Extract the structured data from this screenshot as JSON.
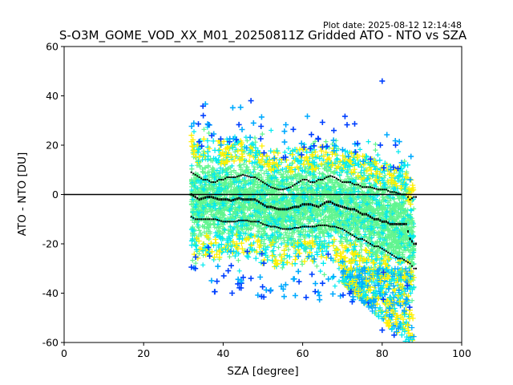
{
  "plot_date": "Plot date: 2025-08-12 12:14:48",
  "chart_data": {
    "type": "scatter",
    "title": "S-O3M_GOME_VOD_XX_M01_20250811Z Gridded ATO - NTO vs SZA",
    "xlabel": "SZA [degree]",
    "ylabel": "ATO - NTO [DU]",
    "xlim": [
      0,
      100
    ],
    "ylim": [
      -60,
      60
    ],
    "xticks": [
      0,
      20,
      40,
      60,
      80,
      100
    ],
    "yticks": [
      -60,
      -40,
      -20,
      0,
      20,
      40,
      60
    ],
    "grid": false,
    "legend": "none",
    "reference_line_y": 0,
    "marker": "plus",
    "colors": {
      "dense": "#60f590",
      "medium": "#00eaf0",
      "low": "#fff000",
      "sparse": "#00aaff",
      "rare": "#0040ff",
      "stat": "#000000"
    },
    "series": [
      {
        "x": [
          32,
          33,
          34,
          35,
          36,
          37,
          38,
          39,
          40,
          41,
          42,
          43,
          44,
          45,
          46,
          47,
          48,
          49,
          50,
          51,
          52,
          53,
          54,
          55,
          56,
          57,
          58,
          59,
          60,
          61,
          62,
          63,
          64,
          65,
          66,
          67,
          68,
          69,
          70,
          71,
          72,
          73,
          74,
          75,
          76,
          77,
          78,
          79,
          80,
          81,
          82,
          83,
          84,
          85,
          86,
          87,
          88
        ],
        "y": [
          0,
          -1,
          -2,
          -1.5,
          -1,
          -1,
          -1.5,
          -2,
          -2,
          -2,
          -2.5,
          -2,
          -1.5,
          -2,
          -2,
          -2,
          -2,
          -3,
          -4,
          -5,
          -5,
          -5.5,
          -6,
          -6,
          -6,
          -5.5,
          -5,
          -5,
          -4,
          -4,
          -4,
          -4.5,
          -5,
          -4,
          -3,
          -3,
          -4,
          -4.5,
          -5,
          -5.5,
          -6,
          -6,
          -7,
          -8,
          -8,
          -9,
          -10,
          -10,
          -11,
          -11,
          -12,
          -12,
          -12,
          -12,
          -12,
          -18,
          -20
        ]
      },
      {
        "x": [
          32,
          33,
          34,
          35,
          36,
          37,
          38,
          39,
          40,
          41,
          42,
          43,
          44,
          45,
          46,
          47,
          48,
          49,
          50,
          51,
          52,
          53,
          54,
          55,
          56,
          57,
          58,
          59,
          60,
          61,
          62,
          63,
          64,
          65,
          66,
          67,
          68,
          69,
          70,
          71,
          72,
          73,
          74,
          75,
          76,
          77,
          78,
          79,
          80,
          81,
          82,
          83,
          84,
          85,
          86,
          87,
          88
        ],
        "y": [
          9,
          8,
          7,
          6,
          6,
          5,
          5,
          6,
          6,
          7,
          7,
          7,
          7.5,
          8,
          7.5,
          7,
          7,
          6,
          5,
          4,
          3,
          2.5,
          2,
          2,
          2.5,
          3,
          4,
          5,
          6,
          6,
          5,
          5,
          6,
          6,
          7,
          7.5,
          7,
          6,
          5,
          5,
          5,
          4,
          4,
          3,
          3,
          3,
          2.5,
          2,
          2,
          2,
          1,
          1,
          0.5,
          0,
          0,
          -2,
          -1
        ]
      },
      {
        "x": [
          32,
          33,
          34,
          35,
          36,
          37,
          38,
          39,
          40,
          41,
          42,
          43,
          44,
          45,
          46,
          47,
          48,
          49,
          50,
          51,
          52,
          53,
          54,
          55,
          56,
          57,
          58,
          59,
          60,
          61,
          62,
          63,
          64,
          65,
          66,
          67,
          68,
          69,
          70,
          71,
          72,
          73,
          74,
          75,
          76,
          77,
          78,
          79,
          80,
          81,
          82,
          83,
          84,
          85,
          86,
          87,
          88
        ],
        "y": [
          -9,
          -10,
          -10,
          -10,
          -10,
          -10,
          -10,
          -10.5,
          -11,
          -11,
          -11,
          -11,
          -10.5,
          -10.5,
          -10.5,
          -11,
          -11,
          -11,
          -12,
          -12.5,
          -13,
          -13,
          -13.5,
          -14,
          -14,
          -14,
          -13.5,
          -13.5,
          -13,
          -13,
          -13,
          -13,
          -12.5,
          -12.5,
          -12.5,
          -13,
          -13,
          -13.5,
          -14,
          -15,
          -16,
          -17,
          -18,
          -18,
          -19,
          -20,
          -21,
          -21,
          -22,
          -23,
          -24,
          -25,
          -26,
          -26,
          -27,
          -28,
          -30
        ]
      }
    ]
  }
}
